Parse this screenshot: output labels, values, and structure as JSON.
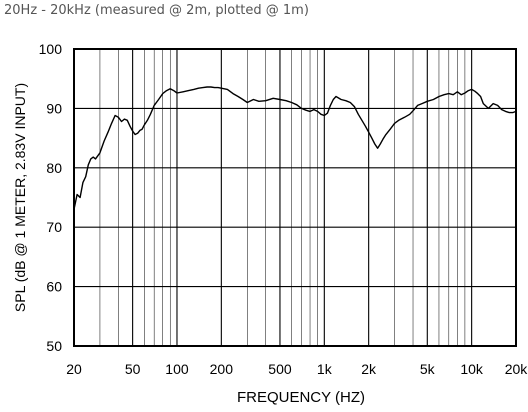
{
  "caption": "20Hz - 20kHz (measured @ 2m, plotted @ 1m)",
  "chart_data": {
    "type": "line",
    "title": "",
    "xlabel": "FREQUENCY  (HZ)",
    "ylabel": "SPL (dB @ 1 METER, 2.83V INPUT)",
    "xscale": "log",
    "xlim": [
      20,
      20000
    ],
    "ylim": [
      50,
      100
    ],
    "grid": true,
    "xticks": [
      {
        "value": 20,
        "label": "20"
      },
      {
        "value": 50,
        "label": "50"
      },
      {
        "value": 100,
        "label": "100"
      },
      {
        "value": 200,
        "label": "200"
      },
      {
        "value": 500,
        "label": "500"
      },
      {
        "value": 1000,
        "label": "1k"
      },
      {
        "value": 2000,
        "label": "2k"
      },
      {
        "value": 5000,
        "label": "5k"
      },
      {
        "value": 10000,
        "label": "10k"
      },
      {
        "value": 20000,
        "label": "20k"
      }
    ],
    "yticks": [
      {
        "value": 50,
        "label": "50"
      },
      {
        "value": 60,
        "label": "60"
      },
      {
        "value": 70,
        "label": "70"
      },
      {
        "value": 80,
        "label": "80"
      },
      {
        "value": 90,
        "label": "90"
      },
      {
        "value": 100,
        "label": "100"
      }
    ],
    "series": [
      {
        "color": "#000000",
        "x": [
          20,
          21,
          22,
          23,
          24,
          25,
          26,
          27,
          28,
          30,
          32,
          34,
          36,
          38,
          40,
          42,
          44,
          46,
          48,
          50,
          52,
          54,
          56,
          58,
          60,
          63,
          66,
          70,
          75,
          80,
          85,
          90,
          95,
          100,
          110,
          120,
          130,
          140,
          150,
          160,
          170,
          180,
          190,
          200,
          220,
          240,
          260,
          280,
          300,
          330,
          360,
          400,
          450,
          500,
          550,
          600,
          650,
          700,
          750,
          800,
          850,
          900,
          950,
          1000,
          1050,
          1100,
          1150,
          1200,
          1300,
          1400,
          1500,
          1600,
          1700,
          1800,
          1900,
          2000,
          2100,
          2200,
          2300,
          2400,
          2500,
          2600,
          2800,
          3000,
          3200,
          3500,
          3800,
          4000,
          4300,
          4600,
          5000,
          5500,
          6000,
          6500,
          7000,
          7500,
          8000,
          8500,
          9000,
          9500,
          10000,
          10500,
          11000,
          11500,
          12000,
          13000,
          14000,
          15000,
          16000,
          17000,
          18000,
          19000,
          20000
        ],
        "y": [
          73.0,
          75.5,
          75.0,
          77.5,
          78.5,
          80.5,
          81.5,
          81.8,
          81.5,
          82.5,
          84.5,
          86.0,
          87.5,
          88.8,
          88.5,
          87.8,
          88.2,
          88.0,
          87.0,
          86.2,
          85.6,
          85.8,
          86.3,
          86.5,
          87.2,
          88.0,
          89.0,
          90.5,
          91.5,
          92.5,
          93.0,
          93.3,
          93.0,
          92.6,
          92.8,
          93.0,
          93.2,
          93.4,
          93.5,
          93.6,
          93.6,
          93.5,
          93.5,
          93.4,
          93.2,
          92.5,
          92.0,
          91.5,
          91.0,
          91.5,
          91.2,
          91.3,
          91.7,
          91.5,
          91.3,
          91.0,
          90.6,
          90.0,
          89.7,
          89.5,
          89.8,
          89.5,
          89.0,
          88.8,
          89.2,
          90.5,
          91.5,
          92.0,
          91.5,
          91.3,
          91.0,
          90.3,
          89.0,
          88.0,
          87.0,
          86.0,
          85.0,
          84.0,
          83.3,
          84.0,
          84.8,
          85.5,
          86.5,
          87.5,
          88.0,
          88.5,
          89.0,
          89.6,
          90.5,
          90.8,
          91.2,
          91.5,
          92.0,
          92.3,
          92.5,
          92.3,
          92.8,
          92.3,
          92.6,
          93.0,
          93.2,
          92.9,
          92.5,
          92.0,
          90.8,
          90.0,
          90.8,
          90.5,
          89.8,
          89.5,
          89.3,
          89.3,
          89.5
        ]
      }
    ]
  }
}
